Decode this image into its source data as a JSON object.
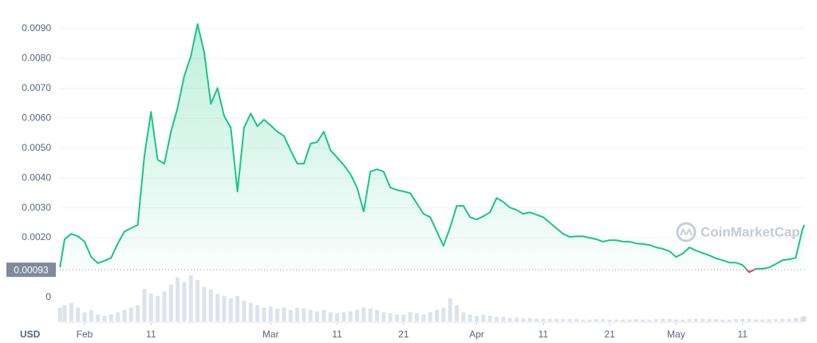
{
  "chart_data": {
    "type": "line",
    "color": "#16c784",
    "below_color": "#ea3943",
    "volume_color": "#cfd6e4",
    "watermark": "CoinMarketCap",
    "currency_label": "USD",
    "baseline": 0.00093,
    "grid": true,
    "xlim": [
      -3.72,
      108.28
    ],
    "xticks": [
      {
        "value": 0,
        "label": "Feb"
      },
      {
        "value": 10,
        "label": "11"
      },
      {
        "value": 28,
        "label": "Mar"
      },
      {
        "value": 38,
        "label": "11"
      },
      {
        "value": 48,
        "label": "21"
      },
      {
        "value": 59,
        "label": "Apr"
      },
      {
        "value": 69,
        "label": "11"
      },
      {
        "value": 79,
        "label": "21"
      },
      {
        "value": 89,
        "label": "May"
      },
      {
        "value": 99,
        "label": "11"
      }
    ],
    "ylim": [
      -0.0008,
      0.0095
    ],
    "yticks": [
      0,
      {
        "value": 0.002,
        "label": "0.0020"
      },
      {
        "value": 0.003,
        "label": "0.0030"
      },
      {
        "value": 0.004,
        "label": "0.0040"
      },
      {
        "value": 0.005,
        "label": "0.0050"
      },
      {
        "value": 0.006,
        "label": "0.0060"
      },
      {
        "value": 0.007,
        "label": "0.0070"
      },
      {
        "value": 0.008,
        "label": "0.0080"
      },
      {
        "value": 0.009,
        "label": "0.0090"
      }
    ],
    "x": [
      -3.7,
      -3,
      -2,
      -1,
      0,
      1,
      2,
      3,
      4,
      5,
      6,
      7,
      8,
      9,
      10,
      11,
      12,
      13,
      14,
      15,
      16,
      17,
      18,
      19,
      20,
      21,
      22,
      23,
      24,
      25,
      26,
      27,
      28,
      29,
      30,
      31,
      32,
      33,
      34,
      35,
      36,
      37,
      38,
      39,
      40,
      41,
      42,
      43,
      44,
      45,
      46,
      47,
      48,
      49,
      50,
      51,
      52,
      53,
      54,
      55,
      56,
      57,
      58,
      59,
      60,
      61,
      62,
      63,
      64,
      65,
      66,
      67,
      68,
      69,
      70,
      71,
      72,
      73,
      74,
      75,
      76,
      77,
      78,
      79,
      80,
      81,
      82,
      83,
      84,
      85,
      86,
      87,
      88,
      89,
      90,
      91,
      92,
      93,
      94,
      95,
      96,
      97,
      98,
      99,
      100,
      101,
      102,
      103,
      104,
      105,
      106,
      107,
      108,
      108.3
    ],
    "values": [
      0.00101,
      0.00195,
      0.00213,
      0.00205,
      0.00187,
      0.00136,
      0.00115,
      0.00123,
      0.00133,
      0.00181,
      0.00221,
      0.00232,
      0.00243,
      0.00475,
      0.00621,
      0.00461,
      0.00448,
      0.00555,
      0.00635,
      0.00741,
      0.00808,
      0.00915,
      0.00821,
      0.00648,
      0.00701,
      0.00608,
      0.00568,
      0.00355,
      0.00568,
      0.00616,
      0.00573,
      0.00595,
      0.00576,
      0.00555,
      0.00541,
      0.00493,
      0.00448,
      0.00448,
      0.00515,
      0.0052,
      0.00555,
      0.00493,
      0.00469,
      0.00443,
      0.00413,
      0.00368,
      0.00288,
      0.00421,
      0.00429,
      0.00421,
      0.00368,
      0.0036,
      0.00355,
      0.00349,
      0.00315,
      0.0028,
      0.00269,
      0.00221,
      0.00173,
      0.00235,
      0.00307,
      0.00307,
      0.00269,
      0.00261,
      0.00272,
      0.00285,
      0.00333,
      0.0032,
      0.00301,
      0.00293,
      0.0028,
      0.00285,
      0.00277,
      0.00269,
      0.00251,
      0.00232,
      0.00213,
      0.00203,
      0.00205,
      0.00205,
      0.002,
      0.00195,
      0.00187,
      0.00192,
      0.00192,
      0.00187,
      0.00187,
      0.00181,
      0.00179,
      0.00176,
      0.00168,
      0.00163,
      0.00155,
      0.00136,
      0.00147,
      0.00168,
      0.00157,
      0.00149,
      0.00141,
      0.00131,
      0.00125,
      0.00117,
      0.00117,
      0.00109,
      0.00085,
      0.00096,
      0.00096,
      0.00101,
      0.00112,
      0.00125,
      0.00128,
      0.00133,
      0.00227,
      0.00243
    ],
    "volume": {
      "ylim": [
        0,
        100
      ],
      "values": [
        30,
        35,
        40,
        30,
        20,
        25,
        15,
        12,
        15,
        20,
        25,
        30,
        35,
        70,
        60,
        55,
        65,
        80,
        95,
        85,
        100,
        90,
        75,
        70,
        60,
        55,
        50,
        55,
        45,
        40,
        35,
        30,
        32,
        28,
        30,
        25,
        30,
        28,
        25,
        22,
        25,
        20,
        18,
        20,
        22,
        25,
        30,
        28,
        25,
        20,
        18,
        15,
        15,
        20,
        18,
        15,
        20,
        25,
        30,
        50,
        35,
        20,
        15,
        12,
        15,
        12,
        10,
        10,
        8,
        8,
        7,
        7,
        6,
        6,
        5,
        6,
        5,
        5,
        5,
        4,
        4,
        5,
        5,
        4,
        4,
        4,
        4,
        5,
        4,
        4,
        5,
        6,
        5,
        4,
        4,
        5,
        6,
        6,
        5,
        5,
        4,
        4,
        5,
        6,
        5,
        4,
        4,
        5,
        5,
        6,
        5,
        8,
        10,
        12
      ]
    }
  }
}
